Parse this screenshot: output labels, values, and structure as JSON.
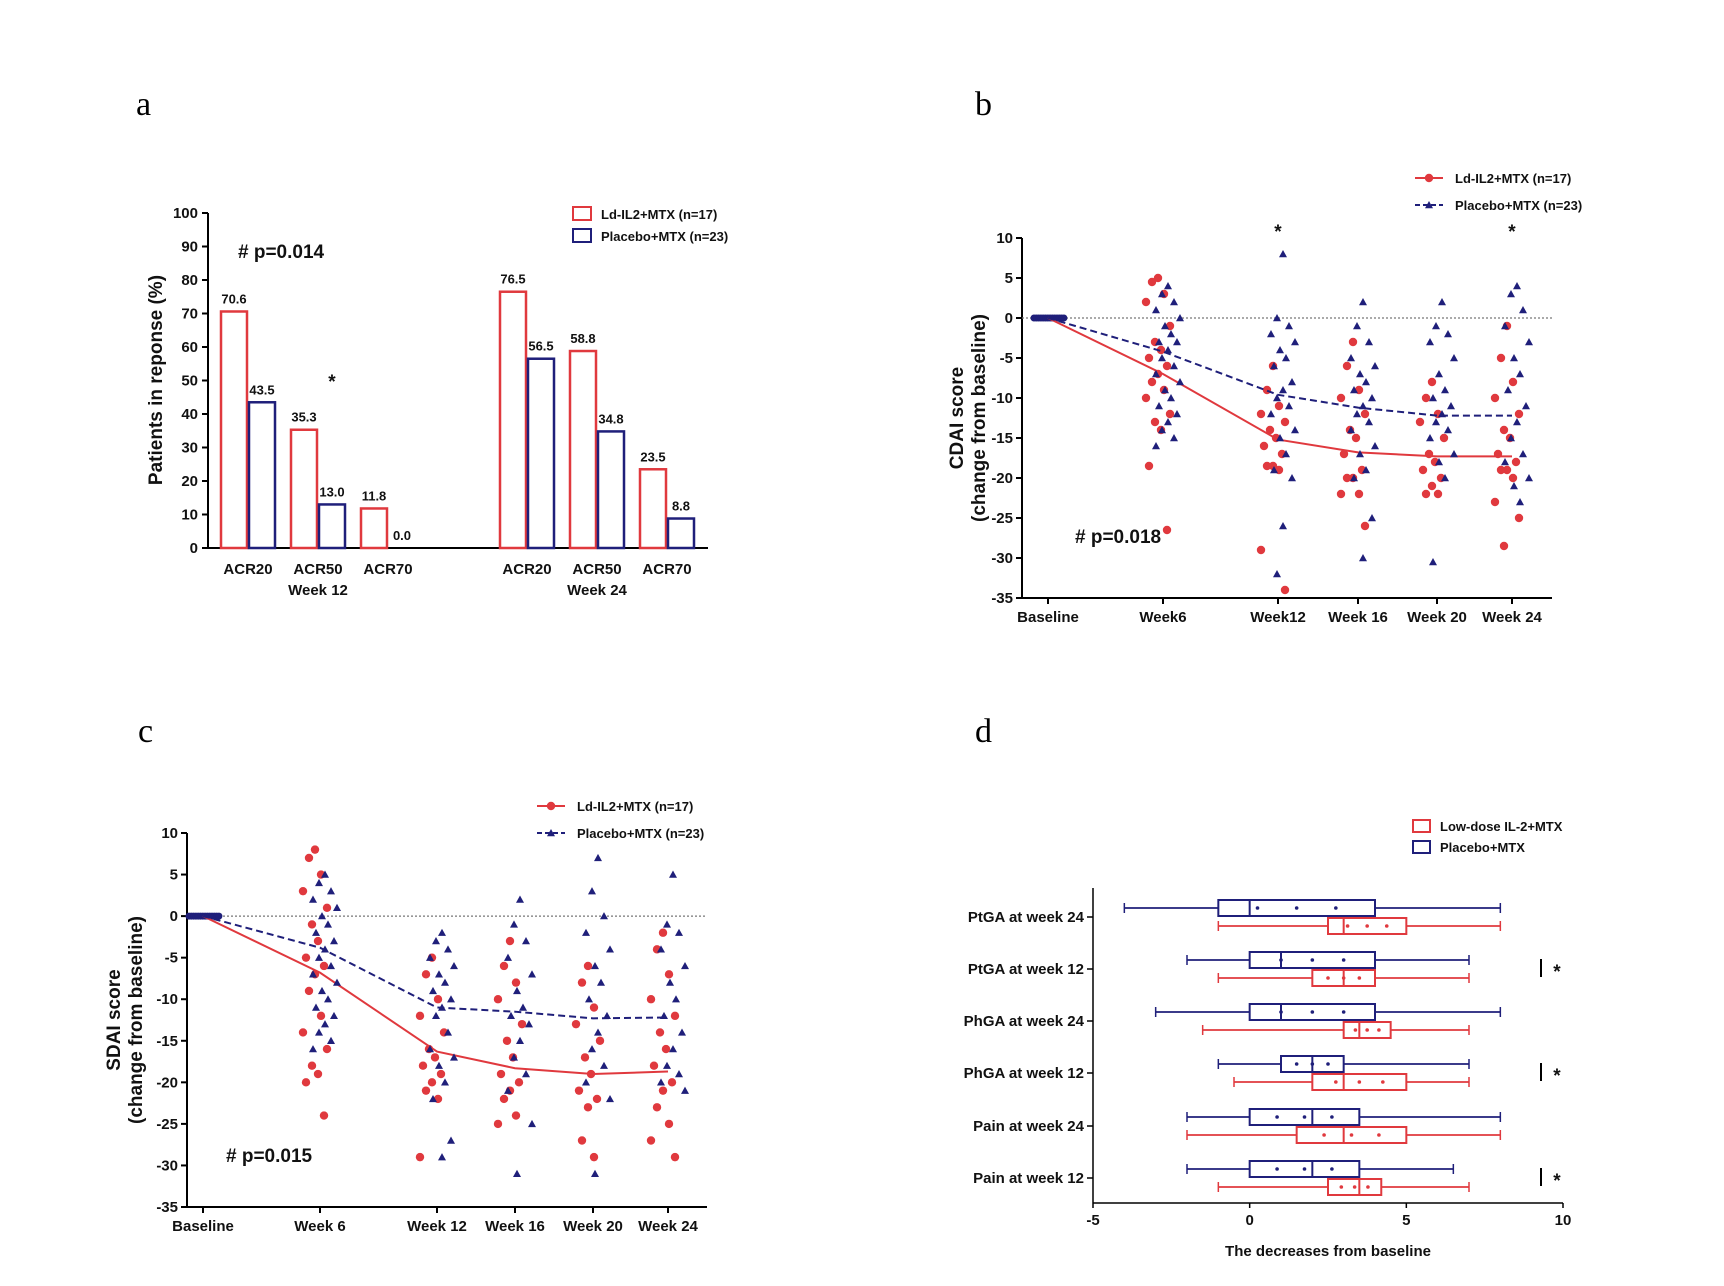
{
  "colors": {
    "red": "#e0393e",
    "blue": "#1f1f7a",
    "ref": "#777777"
  },
  "panels": {
    "a": {
      "letter": "a"
    },
    "b": {
      "letter": "b"
    },
    "c": {
      "letter": "c"
    },
    "d": {
      "letter": "d"
    }
  },
  "chart_data": [
    {
      "id": "a",
      "type": "bar",
      "ylabel": "Patients in reponse (%)",
      "ylim": [
        0,
        100
      ],
      "yticks": [
        0,
        10,
        20,
        30,
        40,
        50,
        60,
        70,
        80,
        90,
        100
      ],
      "annotation": "# p=0.014",
      "groups": [
        "Week 12",
        "Week 24"
      ],
      "categories": [
        "ACR20",
        "ACR50",
        "ACR70",
        "ACR20",
        "ACR50",
        "ACR70"
      ],
      "series": [
        {
          "name": "Ld-IL2+MTX (n=17)",
          "values": [
            70.6,
            35.3,
            11.8,
            76.5,
            58.8,
            23.5
          ],
          "labels": [
            "70.6",
            "35.3",
            "11.8",
            "76.5",
            "58.8",
            "23.5"
          ]
        },
        {
          "name": "Placebo+MTX (n=23)",
          "values": [
            43.5,
            13.0,
            0.0,
            56.5,
            34.8,
            8.8
          ],
          "labels": [
            "43.5",
            "13.0",
            "0.0",
            "56.5",
            "34.8",
            "8.8"
          ]
        }
      ],
      "significance": [
        {
          "category_index": 1,
          "mark": "*"
        }
      ]
    },
    {
      "id": "b",
      "type": "scatter",
      "ylabel": "CDAI score",
      "ylabel2": "(change from baseline)",
      "ylim": [
        -35,
        10
      ],
      "yticks": [
        10,
        5,
        0,
        -5,
        -10,
        -15,
        -20,
        -25,
        -30,
        -35
      ],
      "xcategories": [
        "Baseline",
        "Week6",
        "Week12",
        "Week 16",
        "Week 20",
        "Week 24"
      ],
      "annotation": "# p=0.018",
      "significance": [
        {
          "x_index": 2,
          "mark": "*"
        },
        {
          "x_index": 5,
          "mark": "*"
        }
      ],
      "series": [
        {
          "name": "Ld-IL2+MTX (n=17)",
          "mean": [
            0,
            -7,
            -15.2,
            -16.8,
            -17.3,
            -17.3
          ],
          "points": [
            [],
            [
              5,
              4.5,
              3,
              2,
              -1,
              -3,
              -4,
              -5,
              -6,
              -7,
              -8,
              -9,
              -10,
              -12,
              -13,
              -14,
              -18.5,
              -26.5
            ],
            [
              -6,
              -9,
              -11,
              -12,
              -13,
              -14,
              -15,
              -16,
              -17,
              -18.5,
              -18.5,
              -19,
              -29,
              -34
            ],
            [
              -3,
              -6,
              -9,
              -10,
              -12,
              -14,
              -15,
              -17,
              -19,
              -20,
              -20,
              -22,
              -22,
              -26
            ],
            [
              -8,
              -10,
              -12,
              -13,
              -15,
              -17,
              -18,
              -19,
              -20,
              -21,
              -22,
              -22
            ],
            [
              -1,
              -5,
              -8,
              -10,
              -12,
              -14,
              -15,
              -17,
              -18,
              -19,
              -19,
              -20,
              -23,
              -25,
              -28.5
            ]
          ]
        },
        {
          "name": "Placebo+MTX (n=23)",
          "mean": [
            0,
            -4.2,
            -9.6,
            -11.2,
            -12.2,
            -12.2
          ],
          "points": [
            [],
            [
              4,
              3,
              2,
              1,
              0,
              -1,
              -2,
              -3,
              -3,
              -4,
              -5,
              -6,
              -7,
              -8,
              -9,
              -10,
              -11,
              -12,
              -13,
              -14,
              -15,
              -16
            ],
            [
              8,
              0,
              -1,
              -2,
              -3,
              -4,
              -5,
              -6,
              -8,
              -9,
              -10,
              -11,
              -12,
              -14,
              -15,
              -17,
              -19,
              -20,
              -26,
              -32
            ],
            [
              2,
              -1,
              -3,
              -5,
              -6,
              -7,
              -8,
              -9,
              -10,
              -11,
              -12,
              -13,
              -14,
              -16,
              -17,
              -19,
              -20,
              -25,
              -30
            ],
            [
              2,
              -1,
              -2,
              -3,
              -5,
              -7,
              -9,
              -10,
              -11,
              -12,
              -13,
              -14,
              -15,
              -17,
              -18,
              -20,
              -30.5
            ],
            [
              4,
              3,
              1,
              -1,
              -3,
              -5,
              -7,
              -9,
              -11,
              -13,
              -15,
              -17,
              -18,
              -20,
              -21,
              -23
            ]
          ]
        }
      ]
    },
    {
      "id": "c",
      "type": "scatter",
      "ylabel": "SDAI score",
      "ylabel2": "(change from baseline)",
      "ylim": [
        -35,
        10
      ],
      "yticks": [
        10,
        5,
        0,
        -5,
        -10,
        -15,
        -20,
        -25,
        -30,
        -35
      ],
      "xcategories": [
        "Baseline",
        "Week 6",
        "Week 12",
        "Week 16",
        "Week 20",
        "Week 24"
      ],
      "annotation": "# p=0.015",
      "series": [
        {
          "name": "Ld-IL2+MTX (n=17)",
          "mean": [
            0,
            -6.8,
            -16.3,
            -18.3,
            -19,
            -18.7
          ],
          "points": [
            [],
            [
              8,
              7,
              5,
              3,
              1,
              -1,
              -3,
              -5,
              -6,
              -7,
              -9,
              -12,
              -14,
              -16,
              -18,
              -19,
              -20,
              -24
            ],
            [
              -5,
              -7,
              -10,
              -12,
              -14,
              -16,
              -17,
              -18,
              -19,
              -20,
              -21,
              -22,
              -29
            ],
            [
              -3,
              -6,
              -8,
              -10,
              -13,
              -15,
              -17,
              -19,
              -20,
              -21,
              -22,
              -24,
              -25
            ],
            [
              -6,
              -8,
              -11,
              -13,
              -15,
              -17,
              -19,
              -21,
              -22,
              -23,
              -27,
              -29
            ],
            [
              -2,
              -4,
              -7,
              -10,
              -12,
              -14,
              -16,
              -18,
              -20,
              -21,
              -23,
              -25,
              -27,
              -29
            ]
          ]
        },
        {
          "name": "Placebo+MTX (n=23)",
          "mean": [
            0,
            -3.8,
            -11,
            -11.5,
            -12.3,
            -12.2
          ],
          "points": [
            [],
            [
              5,
              4,
              3,
              2,
              1,
              0,
              -1,
              -2,
              -3,
              -4,
              -5,
              -6,
              -7,
              -8,
              -9,
              -10,
              -11,
              -12,
              -13,
              -14,
              -15,
              -16
            ],
            [
              -2,
              -3,
              -4,
              -5,
              -6,
              -7,
              -8,
              -9,
              -10,
              -11,
              -12,
              -14,
              -16,
              -17,
              -18,
              -20,
              -22,
              -27,
              -29
            ],
            [
              2,
              -1,
              -3,
              -5,
              -7,
              -9,
              -11,
              -12,
              -13,
              -15,
              -17,
              -19,
              -21,
              -25,
              -31
            ],
            [
              7,
              3,
              0,
              -2,
              -4,
              -6,
              -8,
              -10,
              -12,
              -14,
              -16,
              -18,
              -20,
              -22,
              -31
            ],
            [
              5,
              -1,
              -2,
              -4,
              -6,
              -8,
              -10,
              -12,
              -14,
              -16,
              -18,
              -19,
              -20,
              -21
            ]
          ]
        }
      ]
    },
    {
      "id": "d",
      "type": "boxplot",
      "xlabel": "The decreases from baseline",
      "xlim": [
        -5,
        10
      ],
      "xticks": [
        -5,
        0,
        5,
        10
      ],
      "categories": [
        "PtGA at week 24",
        "PtGA at week 12",
        "PhGA at week 24",
        "PhGA at week 12",
        "Pain at week 24",
        "Pain at week 12"
      ],
      "significance": [
        {
          "category_index": 1,
          "mark": "*"
        },
        {
          "category_index": 3,
          "mark": "*"
        },
        {
          "category_index": 5,
          "mark": "*"
        }
      ],
      "series": [
        {
          "name": "Low-dose IL-2+MTX",
          "boxes": [
            {
              "min": -1,
              "q1": 2.5,
              "median": 3,
              "q3": 5,
              "max": 8
            },
            {
              "min": -1,
              "q1": 2,
              "median": 3,
              "q3": 4,
              "max": 7
            },
            {
              "min": -1.5,
              "q1": 3,
              "median": 3.5,
              "q3": 4.5,
              "max": 7
            },
            {
              "min": -0.5,
              "q1": 2,
              "median": 3,
              "q3": 5,
              "max": 7
            },
            {
              "min": -2,
              "q1": 1.5,
              "median": 3,
              "q3": 5,
              "max": 8
            },
            {
              "min": -1,
              "q1": 2.5,
              "median": 3.5,
              "q3": 4.2,
              "max": 7
            }
          ]
        },
        {
          "name": "Placebo+MTX",
          "boxes": [
            {
              "min": -4,
              "q1": -1,
              "median": 0,
              "q3": 4,
              "max": 8
            },
            {
              "min": -2,
              "q1": 0,
              "median": 1,
              "q3": 4,
              "max": 7
            },
            {
              "min": -3,
              "q1": 0,
              "median": 1,
              "q3": 4,
              "max": 8
            },
            {
              "min": -1,
              "q1": 1,
              "median": 2,
              "q3": 3,
              "max": 7
            },
            {
              "min": -2,
              "q1": 0,
              "median": 2,
              "q3": 3.5,
              "max": 8
            },
            {
              "min": -2,
              "q1": 0,
              "median": 2,
              "q3": 3.5,
              "max": 6.5
            }
          ]
        }
      ]
    }
  ]
}
